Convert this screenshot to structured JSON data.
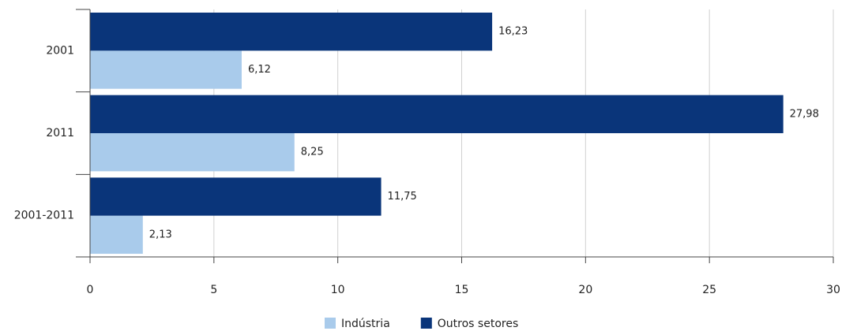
{
  "chart_data": {
    "type": "bar",
    "orientation": "horizontal",
    "categories": [
      "2001",
      "2011",
      "2001-2011"
    ],
    "series": [
      {
        "name": "Indústria",
        "color": "#a9cbeb",
        "values": [
          6.12,
          8.25,
          2.13
        ],
        "value_labels": [
          "6,12",
          "8,25",
          "2,13"
        ]
      },
      {
        "name": "Outros setores",
        "color": "#0a357a",
        "values": [
          16.23,
          27.98,
          11.75
        ],
        "value_labels": [
          "16,23",
          "27,98",
          "11,75"
        ]
      }
    ],
    "xlim": [
      0,
      30
    ],
    "xticks": [
      0,
      5,
      10,
      15,
      20,
      25,
      30
    ],
    "grid": true,
    "legend": "bottom"
  }
}
